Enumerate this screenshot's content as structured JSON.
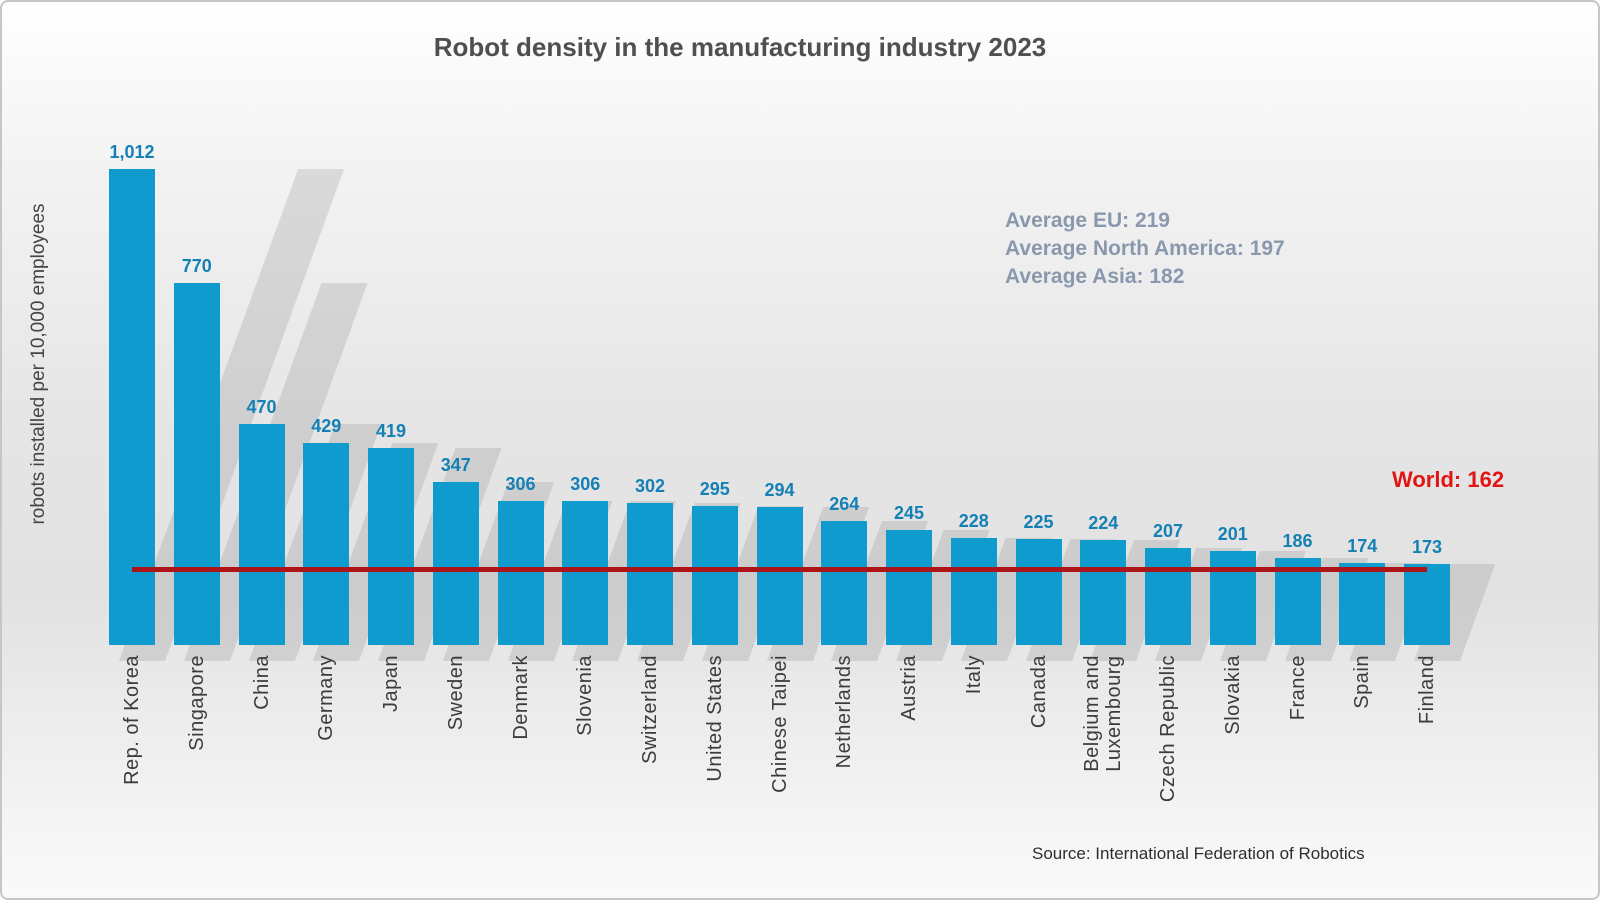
{
  "title": "Robot density in the manufacturing industry 2023",
  "colors": {
    "bar": "#0f9bce",
    "value_label": "#1580b5",
    "world_line": "#ac1418",
    "world_text": "#e31414",
    "averages_text": "#8a98ae",
    "title_text": "#4f4f4f",
    "axis_text": "#3c3c3c"
  },
  "chart_data": {
    "type": "bar",
    "title": "Robot density in the manufacturing industry 2023",
    "ylabel": "robots installed per 10,000 employees",
    "xlabel": "",
    "grid": false,
    "legend": false,
    "categories": [
      "Rep. of Korea",
      "Singapore",
      "China",
      "Germany",
      "Japan",
      "Sweden",
      "Denmark",
      "Slovenia",
      "Switzerland",
      "United States",
      "Chinese Taipei",
      "Netherlands",
      "Austria",
      "Italy",
      "Canada",
      "Belgium and\nLuxembourg",
      "Czech Republic",
      "Slovakia",
      "France",
      "Spain",
      "Finland"
    ],
    "values": [
      1012,
      770,
      470,
      429,
      419,
      347,
      306,
      306,
      302,
      295,
      294,
      264,
      245,
      228,
      225,
      224,
      207,
      201,
      186,
      174,
      173
    ],
    "value_labels": [
      "1,012",
      "770",
      "470",
      "429",
      "419",
      "347",
      "306",
      "306",
      "302",
      "295",
      "294",
      "264",
      "245",
      "228",
      "225",
      "224",
      "207",
      "201",
      "186",
      "174",
      "173"
    ],
    "reference_line": {
      "label": "World",
      "value": 162,
      "display": "World: 162"
    },
    "annotations": [
      "Average EU: 219",
      "Average North America: 197",
      "Average Asia: 182"
    ],
    "source": "Source: International Federation of Robotics"
  }
}
